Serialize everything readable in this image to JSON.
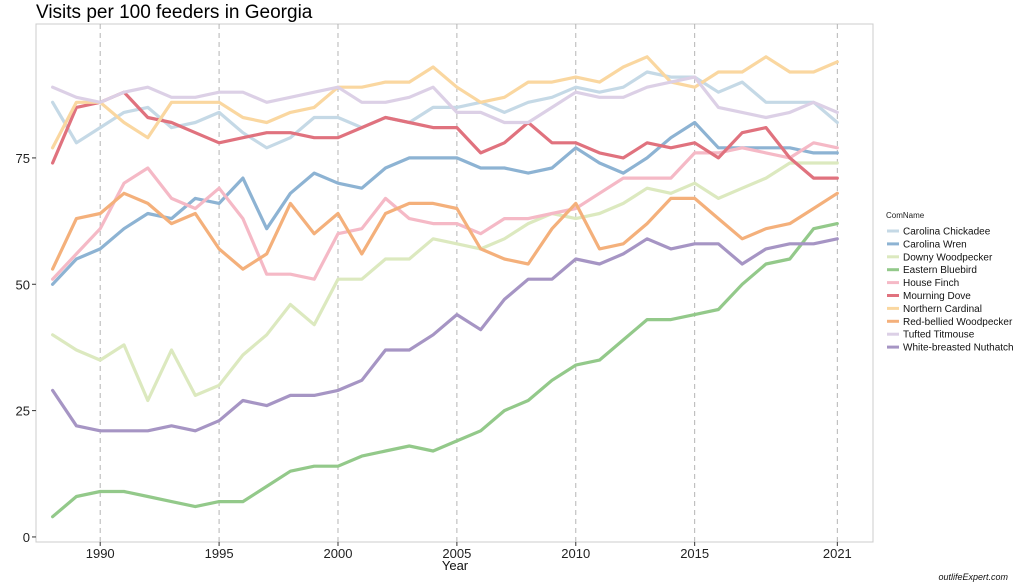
{
  "chart_data": {
    "type": "line",
    "title": "Visits per 100 feeders in Georgia",
    "xlabel": "Year",
    "ylabel": "",
    "xlim": [
      1987.3,
      2022.5
    ],
    "ylim": [
      -1,
      101.5
    ],
    "xticks": [
      1990,
      1995,
      2000,
      2005,
      2010,
      2015,
      2021
    ],
    "yticks": [
      0,
      25,
      50,
      75
    ],
    "grid": "vertical-dashed",
    "legend_title": "ComName",
    "legend_position": "right",
    "x": [
      1988,
      1989,
      1990,
      1991,
      1992,
      1993,
      1994,
      1995,
      1996,
      1997,
      1998,
      1999,
      2000,
      2001,
      2002,
      2003,
      2004,
      2005,
      2006,
      2007,
      2008,
      2009,
      2010,
      2011,
      2012,
      2013,
      2014,
      2015,
      2016,
      2017,
      2018,
      2019,
      2020,
      2021
    ],
    "series": [
      {
        "name": "Carolina Chickadee",
        "color": "#c5d9e6",
        "values": [
          86,
          78,
          81,
          84,
          85,
          81,
          82,
          84,
          80,
          77,
          79,
          83,
          83,
          81,
          83,
          82,
          85,
          85,
          86,
          84,
          86,
          87,
          89,
          88,
          89,
          92,
          91,
          91,
          88,
          90,
          86,
          86,
          86,
          82
        ]
      },
      {
        "name": "Carolina Wren",
        "color": "#8db3d3",
        "values": [
          50,
          55,
          57,
          61,
          64,
          63,
          67,
          66,
          71,
          61,
          68,
          72,
          70,
          69,
          73,
          75,
          75,
          75,
          73,
          73,
          72,
          73,
          77,
          74,
          72,
          75,
          79,
          82,
          77,
          77,
          77,
          77,
          76,
          76
        ]
      },
      {
        "name": "Downy Woodpecker",
        "color": "#dce9bf",
        "values": [
          40,
          37,
          35,
          38,
          27,
          37,
          28,
          30,
          36,
          40,
          46,
          42,
          51,
          51,
          55,
          55,
          59,
          58,
          57,
          59,
          62,
          64,
          63,
          64,
          66,
          69,
          68,
          70,
          67,
          69,
          71,
          74,
          74,
          74
        ]
      },
      {
        "name": "Eastern Bluebird",
        "color": "#93c98a",
        "values": [
          4,
          8,
          9,
          9,
          8,
          7,
          6,
          7,
          7,
          10,
          13,
          14,
          14,
          16,
          17,
          18,
          17,
          19,
          21,
          25,
          27,
          31,
          34,
          35,
          39,
          43,
          43,
          44,
          45,
          50,
          54,
          55,
          61,
          62
        ]
      },
      {
        "name": "House Finch",
        "color": "#f5b9c6",
        "values": [
          51,
          56,
          61,
          70,
          73,
          67,
          65,
          69,
          63,
          52,
          52,
          51,
          60,
          61,
          67,
          63,
          62,
          62,
          60,
          63,
          63,
          64,
          65,
          68,
          71,
          71,
          71,
          76,
          76,
          77,
          76,
          75,
          78,
          77
        ]
      },
      {
        "name": "Mourning Dove",
        "color": "#e0727e",
        "values": [
          74,
          85,
          86,
          88,
          83,
          82,
          80,
          78,
          79,
          80,
          80,
          79,
          79,
          81,
          83,
          82,
          81,
          81,
          76,
          78,
          82,
          78,
          78,
          76,
          75,
          78,
          77,
          78,
          75,
          80,
          81,
          75,
          71,
          71
        ]
      },
      {
        "name": "Northern Cardinal",
        "color": "#fad7a0",
        "values": [
          77,
          86,
          86,
          82,
          79,
          86,
          86,
          86,
          83,
          82,
          84,
          85,
          89,
          89,
          90,
          90,
          93,
          89,
          86,
          87,
          90,
          90,
          91,
          90,
          93,
          95,
          90,
          89,
          92,
          92,
          95,
          92,
          92,
          94
        ]
      },
      {
        "name": "Red-bellied Woodpecker",
        "color": "#f4b07b",
        "values": [
          53,
          63,
          64,
          68,
          66,
          62,
          64,
          57,
          53,
          56,
          66,
          60,
          64,
          56,
          64,
          66,
          66,
          65,
          57,
          55,
          54,
          61,
          66,
          57,
          58,
          62,
          67,
          67,
          63,
          59,
          61,
          62,
          65,
          68
        ]
      },
      {
        "name": "Tufted Titmouse",
        "color": "#dcd0e6",
        "values": [
          89,
          87,
          86,
          88,
          89,
          87,
          87,
          88,
          88,
          86,
          87,
          88,
          89,
          86,
          86,
          87,
          89,
          84,
          84,
          82,
          82,
          85,
          88,
          87,
          87,
          89,
          90,
          91,
          85,
          84,
          83,
          84,
          86,
          84
        ]
      },
      {
        "name": "White-breasted Nuthatch",
        "color": "#a695c4",
        "values": [
          29,
          22,
          21,
          21,
          21,
          22,
          21,
          23,
          27,
          26,
          28,
          28,
          29,
          31,
          37,
          37,
          40,
          44,
          41,
          47,
          51,
          51,
          55,
          54,
          56,
          59,
          57,
          58,
          58,
          54,
          57,
          58,
          58,
          59
        ]
      }
    ]
  },
  "watermark": "outlifeExpert.com"
}
